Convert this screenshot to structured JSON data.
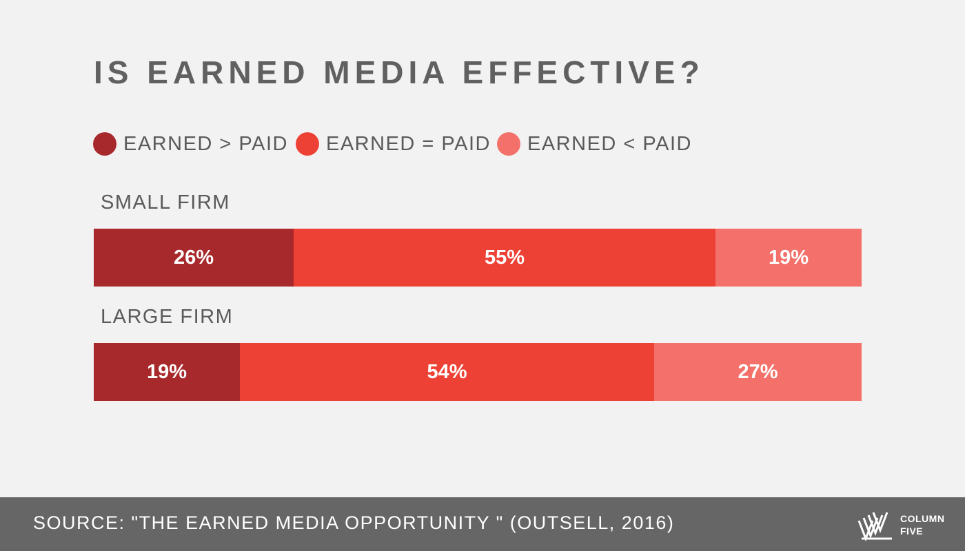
{
  "title": "IS EARNED MEDIA EFFECTIVE?",
  "legend": [
    {
      "label": "EARNED > PAID",
      "color": "#a8292b"
    },
    {
      "label": "EARNED = PAID",
      "color": "#ee4135"
    },
    {
      "label": "EARNED < PAID",
      "color": "#f3716a"
    }
  ],
  "chart_data": {
    "type": "bar",
    "stacked": true,
    "orientation": "horizontal",
    "categories": [
      "SMALL FIRM",
      "LARGE FIRM"
    ],
    "series": [
      {
        "name": "EARNED > PAID",
        "values": [
          26,
          19
        ],
        "labels": [
          "26%",
          "19%"
        ],
        "color": "#a8292b"
      },
      {
        "name": "EARNED = PAID",
        "values": [
          55,
          54
        ],
        "labels": [
          "55%",
          "54%"
        ],
        "color": "#ee4135"
      },
      {
        "name": "EARNED < PAID",
        "values": [
          19,
          27
        ],
        "labels": [
          "19%",
          "27%"
        ],
        "color": "#f3716a"
      }
    ],
    "xlim": [
      0,
      100
    ],
    "grid": false,
    "legend_position": "top-left"
  },
  "footer": {
    "source": "SOURCE: \"THE EARNED MEDIA OPPORTUNITY \" (OUTSELL, 2016)",
    "logo_line1": "COLUMN",
    "logo_line2": "FIVE",
    "logo_icon": "column-five-logo-icon"
  }
}
